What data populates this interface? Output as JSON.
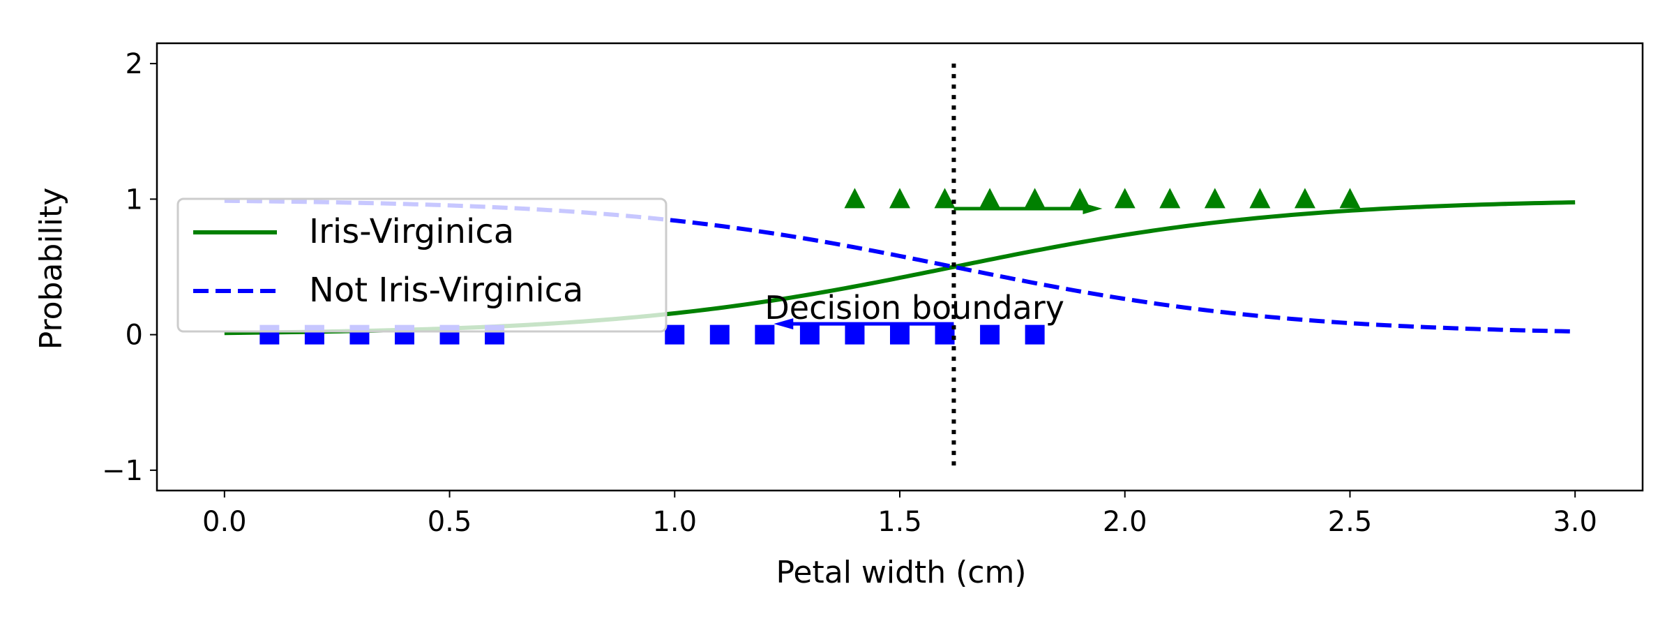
{
  "chart_data": {
    "type": "line",
    "xlabel": "Petal width (cm)",
    "ylabel": "Probability",
    "xlim": [
      -0.15,
      3.15
    ],
    "ylim": [
      -1.15,
      2.15
    ],
    "xticks": [
      "0.0",
      "0.5",
      "1.0",
      "1.5",
      "2.0",
      "2.5",
      "3.0"
    ],
    "yticks": [
      "−1",
      "0",
      "1",
      "2"
    ],
    "grid": false,
    "legend_position": "center-left",
    "decision_boundary": 1.62,
    "series": [
      {
        "name": "Iris-Virginica",
        "kind": "logistic-curve",
        "color": "#008000",
        "style": "solid",
        "x_range": [
          0.0,
          3.0
        ],
        "midpoint": 1.62,
        "steepness": 2.7
      },
      {
        "name": "Not Iris-Virginica",
        "kind": "complement-curve",
        "color": "#0000ff",
        "style": "dashed",
        "x_range": [
          0.0,
          3.0
        ],
        "midpoint": 1.62,
        "steepness": 2.7
      }
    ],
    "scatter": [
      {
        "label": "",
        "marker": "square",
        "color": "#0000ff",
        "y": 0,
        "x": [
          0.1,
          0.2,
          0.3,
          0.4,
          0.5,
          0.6,
          1.0,
          1.1,
          1.2,
          1.3,
          1.4,
          1.5,
          1.6,
          1.7,
          1.8
        ]
      },
      {
        "label": "",
        "marker": "triangle",
        "color": "#008000",
        "y": 1,
        "x": [
          1.4,
          1.5,
          1.6,
          1.7,
          1.8,
          1.9,
          2.0,
          2.1,
          2.2,
          2.3,
          2.4,
          2.5
        ]
      }
    ],
    "annotation": {
      "text": "Decision  boundary",
      "text_x": 1.2,
      "text_y": 0.2,
      "arrow_from": [
        1.62,
        0.08
      ],
      "arrow_to": [
        1.22,
        0.08
      ]
    },
    "arrow_green": {
      "from": [
        1.62,
        0.93
      ],
      "to": [
        1.95,
        0.93
      ]
    }
  }
}
